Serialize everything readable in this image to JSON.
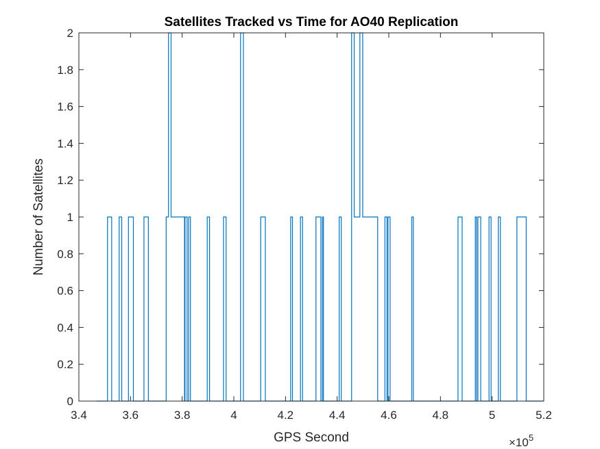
{
  "chart_data": {
    "type": "line",
    "title": "Satellites Tracked vs Time for AO40 Replication",
    "xlabel": "GPS Second",
    "ylabel": "Number of Satellites",
    "xlim": [
      340000,
      520000
    ],
    "ylim": [
      0,
      2
    ],
    "x_exponent_label": "×10",
    "x_exponent_power": "5",
    "x_ticks": [
      3.4,
      3.6,
      3.8,
      4.0,
      4.2,
      4.4,
      4.6,
      4.8,
      5.0,
      5.2
    ],
    "x_tick_labels": [
      "3.4",
      "3.6",
      "3.8",
      "4",
      "4.2",
      "4.4",
      "4.6",
      "4.8",
      "5",
      "5.2"
    ],
    "y_ticks": [
      0,
      0.2,
      0.4,
      0.6,
      0.8,
      1,
      1.2,
      1.4,
      1.6,
      1.8,
      2
    ],
    "y_tick_labels": [
      "0",
      "0.2",
      "0.4",
      "0.6",
      "0.8",
      "1",
      "1.2",
      "1.4",
      "1.6",
      "1.8",
      "2"
    ],
    "grid": false,
    "series": [
      {
        "line_style": "stairs",
        "color": "#0072BD",
        "x": [
          346800,
          351100,
          351200,
          352700,
          355600,
          356600,
          359200,
          361100,
          365200,
          366900,
          373800,
          374700,
          375300,
          375700,
          376200,
          378900,
          379100,
          380900,
          381100,
          381500,
          381900,
          382500,
          383200,
          383700,
          389700,
          390600,
          396000,
          397000,
          402600,
          403700,
          410400,
          412200,
          422000,
          422700,
          425800,
          426600,
          431800,
          433700,
          434300,
          434700,
          435000,
          440800,
          441600,
          445600,
          446400,
          446600,
          448800,
          449900,
          454300,
          455700,
          458500,
          459300,
          459700,
          460500,
          468900,
          469500,
          486800,
          488400,
          493500,
          494000,
          494500,
          495600,
          498800,
          499600,
          502400,
          503200,
          509600,
          510400,
          511600,
          513200
        ],
        "y": [
          0,
          1,
          1,
          0,
          1,
          0,
          1,
          0,
          1,
          0,
          1,
          2,
          2,
          1,
          1,
          1,
          1,
          0,
          1,
          1,
          0,
          1,
          0,
          0,
          1,
          0,
          1,
          0,
          2,
          0,
          1,
          0,
          1,
          0,
          1,
          0,
          1,
          0,
          1,
          0,
          0,
          1,
          0,
          2,
          2,
          1,
          2,
          1,
          1,
          0,
          1,
          0,
          1,
          0,
          1,
          0,
          1,
          0,
          1,
          0,
          1,
          0,
          1,
          0,
          1,
          0,
          1,
          1,
          1,
          0
        ],
        "x_end": 519900
      }
    ]
  }
}
